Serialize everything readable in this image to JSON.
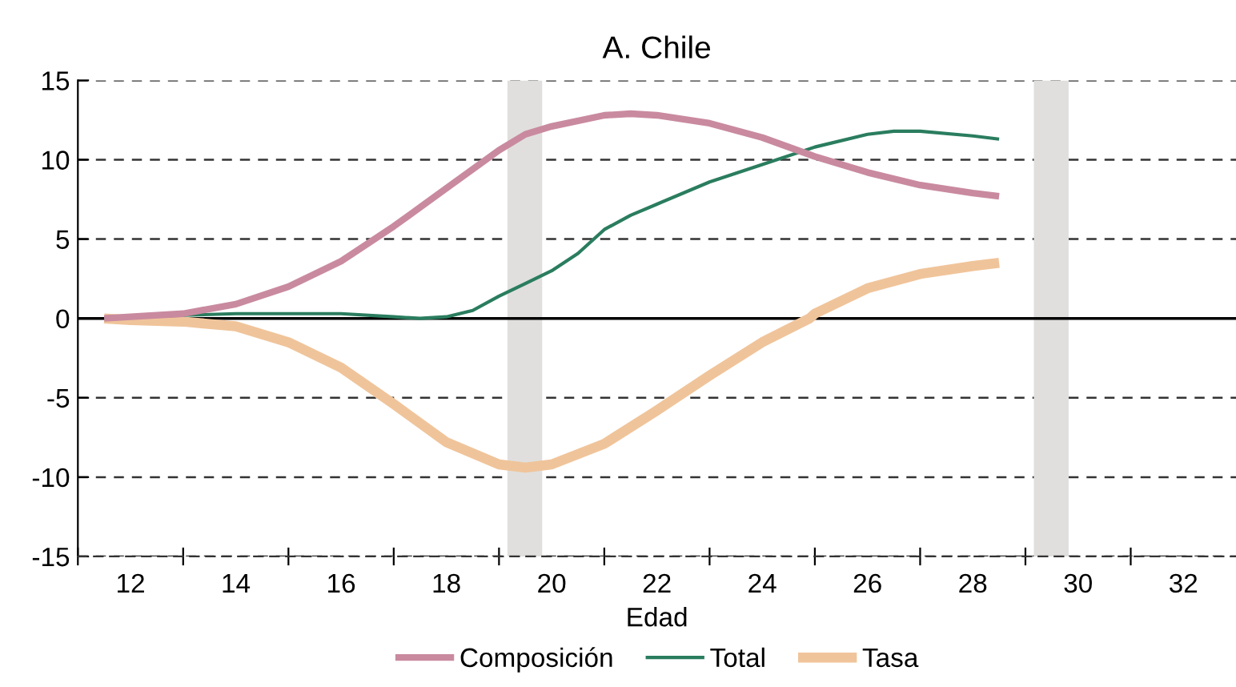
{
  "chart_data": {
    "type": "line",
    "title": "A. Chile",
    "xlabel": "Edad",
    "xlim": [
      11,
      33
    ],
    "ylim": [
      -15,
      15
    ],
    "xticks": [
      {
        "value": 11,
        "label": null
      },
      12,
      {
        "value": 13,
        "label": null
      },
      14,
      {
        "value": 15,
        "label": null
      },
      16,
      {
        "value": 17,
        "label": null
      },
      18,
      {
        "value": 19,
        "label": null
      },
      20,
      {
        "value": 21,
        "label": null
      },
      22,
      {
        "value": 23,
        "label": null
      },
      24,
      {
        "value": 25,
        "label": null
      },
      26,
      {
        "value": 27,
        "label": null
      },
      28,
      {
        "value": 29,
        "label": null
      },
      30,
      {
        "value": 31,
        "label": null
      },
      32
    ],
    "yticks": [
      -15,
      -10,
      -5,
      0,
      5,
      10,
      15
    ],
    "grid": "y",
    "legend": "bottom",
    "ref_lines": [
      {
        "axis": "y",
        "value": 0,
        "color": "#000000",
        "line_style": "solid"
      }
    ],
    "bands": [
      {
        "axis": "x",
        "from": 19.16,
        "to": 19.82,
        "color": "#e0dfdd"
      },
      {
        "axis": "x",
        "from": 29.16,
        "to": 29.82,
        "color": "#e0dfdd"
      }
    ],
    "series": [
      {
        "name": "Composición",
        "color": "#c98a9f",
        "x": [
          11.5,
          12,
          13,
          14,
          15,
          16,
          17,
          18,
          19,
          19.5,
          20,
          21,
          21.5,
          22,
          23,
          24,
          25,
          26,
          27,
          28,
          28.5
        ],
        "values": [
          0,
          0.1,
          0.3,
          0.9,
          2.0,
          3.6,
          5.8,
          8.2,
          10.6,
          11.6,
          12.1,
          12.8,
          12.9,
          12.8,
          12.3,
          11.4,
          10.2,
          9.2,
          8.4,
          7.9,
          7.7
        ]
      },
      {
        "name": "Total",
        "color": "#2a7d5f",
        "x": [
          11.5,
          13,
          14,
          15,
          16,
          17,
          17.5,
          18,
          18.5,
          19,
          19.5,
          20,
          20.5,
          21,
          21.5,
          22,
          23,
          24,
          25,
          26,
          26.5,
          27,
          28,
          28.5
        ],
        "values": [
          0,
          0.2,
          0.3,
          0.3,
          0.3,
          0.1,
          0,
          0.1,
          0.5,
          1.4,
          2.2,
          3.0,
          4.1,
          5.6,
          6.5,
          7.2,
          8.6,
          9.7,
          10.8,
          11.6,
          11.8,
          11.8,
          11.5,
          11.3
        ]
      },
      {
        "name": "Tasa",
        "color": "#f0c49a",
        "x": [
          11.5,
          12,
          13,
          14,
          15,
          16,
          17,
          18,
          19,
          19.5,
          20,
          21,
          22,
          23,
          24,
          24.9,
          25,
          26,
          27,
          28,
          28.5
        ],
        "values": [
          0,
          -0.1,
          -0.2,
          -0.5,
          -1.5,
          -3.1,
          -5.4,
          -7.8,
          -9.2,
          -9.4,
          -9.2,
          -7.9,
          -5.8,
          -3.6,
          -1.5,
          0,
          0.3,
          1.9,
          2.8,
          3.3,
          3.5
        ]
      }
    ]
  }
}
